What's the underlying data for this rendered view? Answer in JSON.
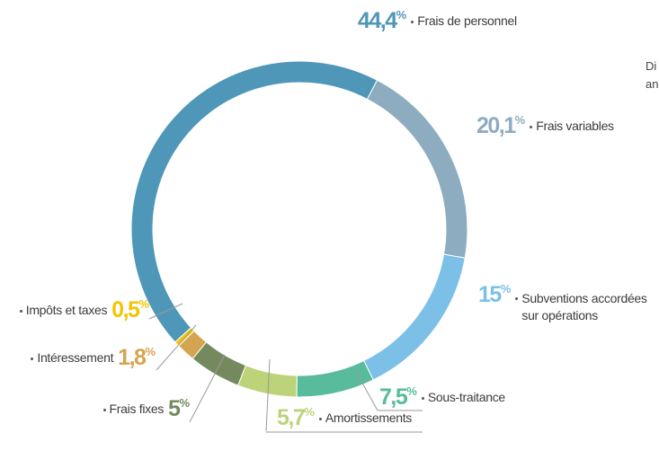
{
  "chart_data": {
    "type": "donut",
    "categories": [
      "Frais de personnel",
      "Frais variables",
      "Subventions accordées sur opérations",
      "Sous-traitance",
      "Amortissements",
      "Frais fixes",
      "Intéressement",
      "Impôts et taxes"
    ],
    "values": [
      44.4,
      20.1,
      15,
      7.5,
      5.7,
      5,
      1.8,
      0.5
    ],
    "value_labels": [
      "44,4%",
      "20,1%",
      "15%",
      "7,5%",
      "5,7%",
      "5%",
      "1,8%",
      "0,5%"
    ],
    "colors": [
      "#4f97b8",
      "#8eacbf",
      "#7cc0e8",
      "#57bb9c",
      "#bcd37a",
      "#748a5e",
      "#d4a550",
      "#f2c500"
    ],
    "annotation": [
      "Di",
      "an"
    ]
  }
}
